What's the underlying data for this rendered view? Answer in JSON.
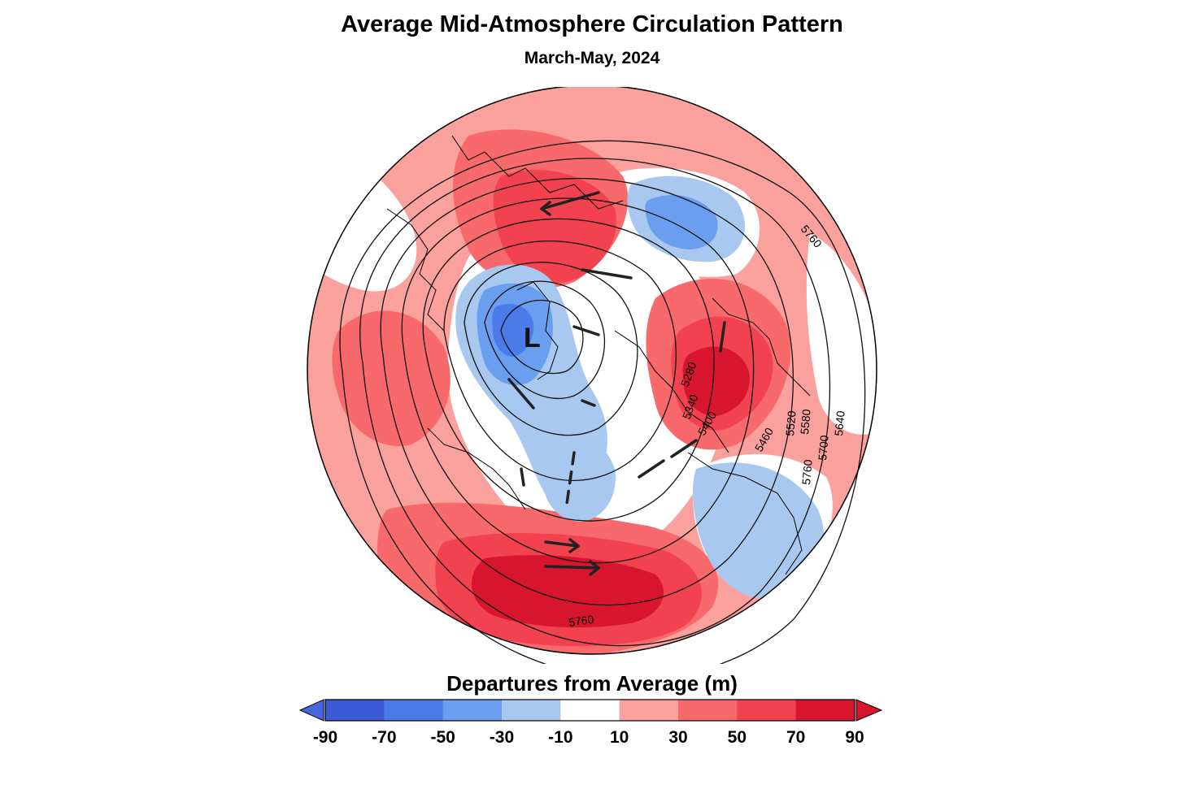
{
  "title": "Average Mid-Atmosphere Circulation Pattern",
  "subtitle": "March-May, 2024",
  "map": {
    "projection": "north-polar-stereographic",
    "low_marker": "L",
    "contour_labels": [
      "5760",
      "5760",
      "5700",
      "5640",
      "5580",
      "5520",
      "5460",
      "5400",
      "5340",
      "5280",
      "5760"
    ],
    "anomaly_colors": {
      "strong_positive": "#d7152f",
      "positive": "#f2414f",
      "moderate_positive": "#f8696b",
      "weak_positive": "#fba19d",
      "neutral": "#ffffff",
      "weak_negative": "#a9c8ef",
      "negative": "#6a9eee"
    }
  },
  "legend": {
    "title": "Departures from Average (m)",
    "ticks": [
      "-90",
      "-70",
      "-50",
      "-30",
      "-10",
      "10",
      "30",
      "50",
      "70",
      "90"
    ],
    "colors": [
      "#3b5bd6",
      "#4b7be8",
      "#6a9eee",
      "#a9c8ef",
      "#ffffff",
      "#fba19d",
      "#f8696b",
      "#f2414f",
      "#d7152f"
    ],
    "under_color": "#4b66dd",
    "over_color": "#d7152f"
  }
}
